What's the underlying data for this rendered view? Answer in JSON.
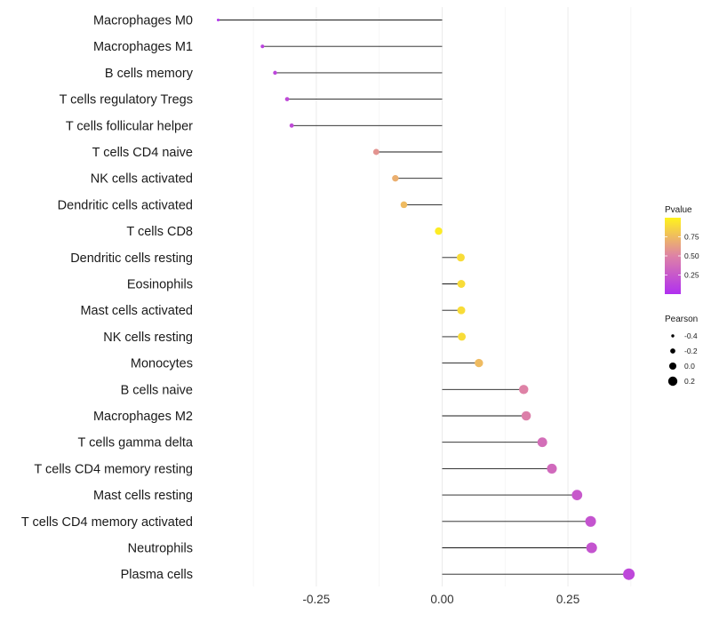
{
  "chart_data": {
    "type": "lollipop",
    "title": "",
    "xlabel": "",
    "ylabel": "",
    "xlim": [
      -0.445,
      0.385
    ],
    "xticks": [
      -0.25,
      0.0,
      0.25
    ],
    "xtick_labels": [
      "-0.25",
      "0.00",
      "0.25"
    ],
    "grid": true,
    "baseline": 0.0,
    "categories": [
      "Macrophages M0",
      "Macrophages M1",
      "B cells memory",
      "T cells regulatory  Tregs",
      "T cells follicular helper",
      "T cells CD4 naive",
      "NK cells activated",
      "Dendritic cells activated",
      "T cells CD8",
      "Dendritic cells resting",
      "Eosinophils",
      "Mast cells activated",
      "NK cells resting",
      "Monocytes",
      "B cells naive",
      "Macrophages M2",
      "T cells gamma delta",
      "T cells CD4 memory resting",
      "Mast cells resting",
      "T cells CD4 memory activated",
      "Neutrophils",
      "Plasma cells"
    ],
    "pearson": [
      -0.445,
      -0.357,
      -0.332,
      -0.308,
      -0.299,
      -0.131,
      -0.093,
      -0.076,
      -0.007,
      0.037,
      0.038,
      0.038,
      0.039,
      0.073,
      0.162,
      0.167,
      0.199,
      0.218,
      0.268,
      0.295,
      0.297,
      0.371
    ],
    "pvalue": [
      0.02,
      0.12,
      0.14,
      0.16,
      0.17,
      0.58,
      0.7,
      0.75,
      0.97,
      0.9,
      0.9,
      0.9,
      0.9,
      0.75,
      0.5,
      0.48,
      0.38,
      0.35,
      0.25,
      0.22,
      0.22,
      0.15
    ],
    "color_scale": {
      "low": "#b02ff0",
      "mid": "#de82a6",
      "high": "#fff31c",
      "range": [
        0,
        1
      ]
    },
    "legend": {
      "position": "right",
      "color_title": "Pvalue",
      "color_ticks": [
        0.25,
        0.5,
        0.75
      ],
      "color_tick_labels": [
        "0.25",
        "0.50",
        "0.75"
      ],
      "size_title": "Pearson",
      "size_values": [
        -0.4,
        -0.2,
        0.0,
        0.2
      ],
      "size_labels": [
        "-0.4",
        "-0.2",
        "0.0",
        "0.2"
      ]
    },
    "colors": {
      "stem": "#1a1a1a",
      "grid": "#ebebeb",
      "text": "#1a1a1a"
    }
  }
}
